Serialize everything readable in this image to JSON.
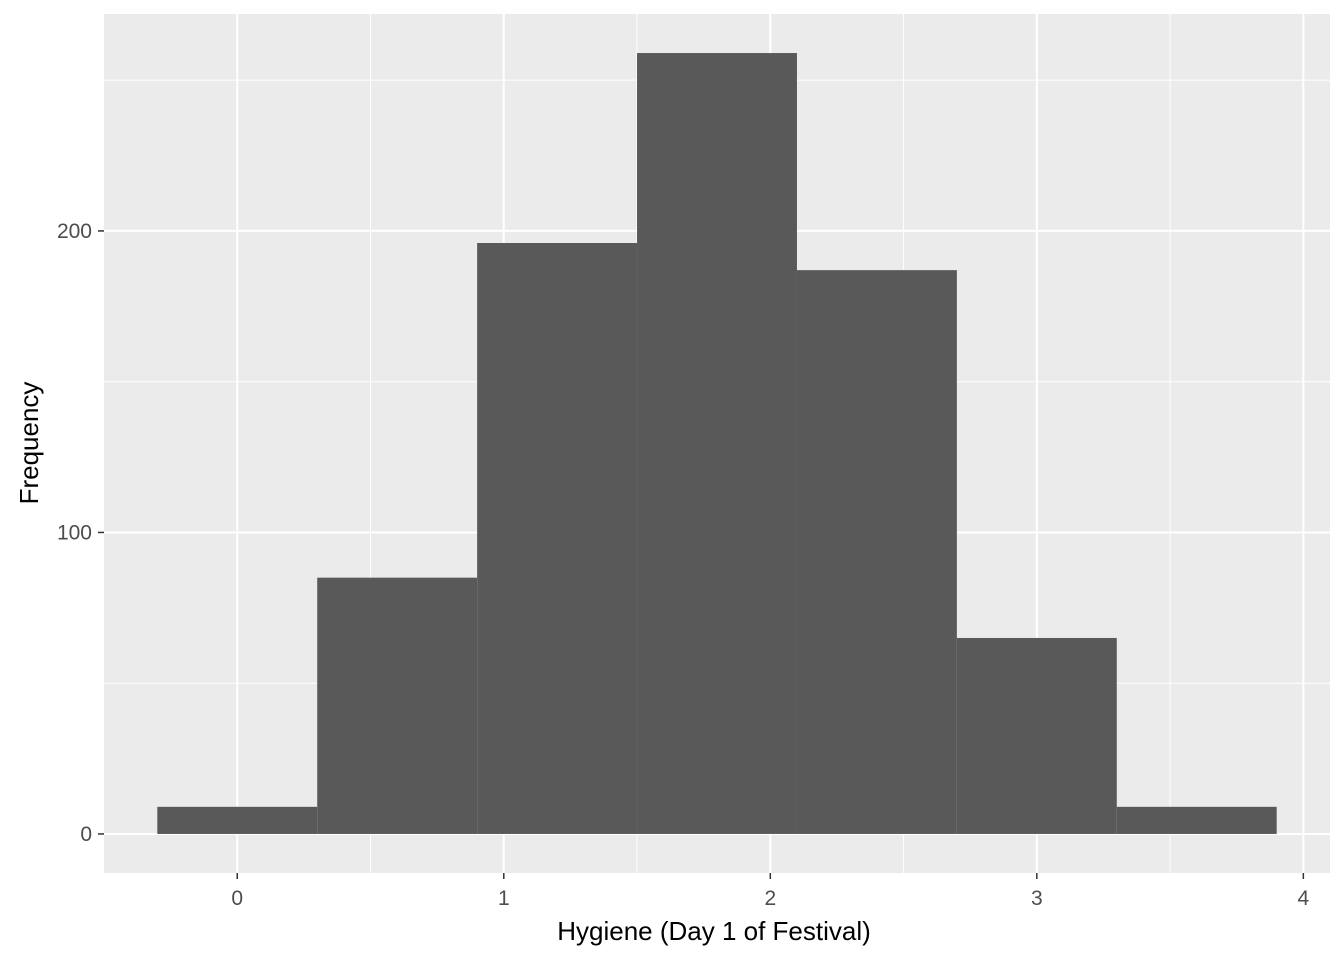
{
  "chart_data": {
    "type": "histogram",
    "xlabel": "Hygiene (Day 1 of Festival)",
    "ylabel": "Frequency",
    "bins": [
      {
        "x0": -0.3,
        "x1": 0.3,
        "count": 9
      },
      {
        "x0": 0.3,
        "x1": 0.9,
        "count": 85
      },
      {
        "x0": 0.9,
        "x1": 1.5,
        "count": 196
      },
      {
        "x0": 1.5,
        "x1": 2.1,
        "count": 259
      },
      {
        "x0": 2.1,
        "x1": 2.7,
        "count": 187
      },
      {
        "x0": 2.7,
        "x1": 3.3,
        "count": 65
      },
      {
        "x0": 3.3,
        "x1": 3.9,
        "count": 9
      }
    ],
    "xlim": [
      -0.5,
      4.1
    ],
    "ylim": [
      -12.95,
      271.95
    ],
    "x_ticks": [
      "0",
      "1",
      "2",
      "3",
      "4"
    ],
    "x_tick_values": [
      0,
      1,
      2,
      3,
      4
    ],
    "y_ticks": [
      "0",
      "100",
      "200"
    ],
    "y_tick_values": [
      0,
      100,
      200
    ],
    "grid": true,
    "colors": {
      "panel_background": "#ebebeb",
      "grid_major": "#ffffff",
      "bar_fill": "#595959",
      "tick_text": "#4d4d4d",
      "title_text": "#000000"
    }
  }
}
